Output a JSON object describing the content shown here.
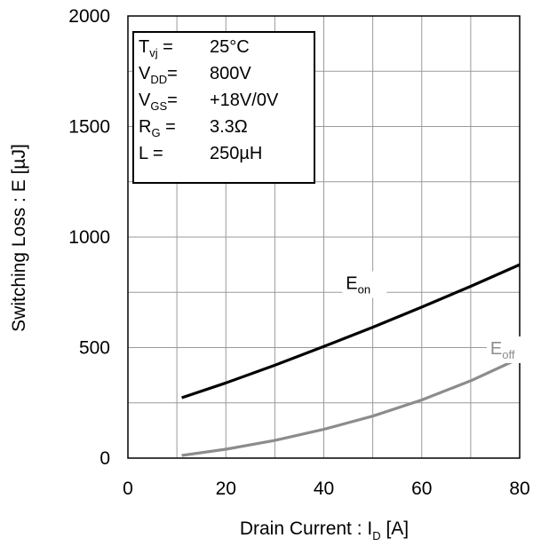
{
  "chart_data": {
    "type": "line",
    "xlabel": {
      "main": "Drain Current : I",
      "sub": "D",
      "tail": " [A]"
    },
    "ylabel": "Switching Loss : E [µJ]",
    "xlim": [
      0,
      80
    ],
    "ylim": [
      0,
      2000
    ],
    "xticks": [
      0,
      20,
      40,
      60,
      80
    ],
    "yticks": [
      0,
      500,
      1000,
      1500,
      2000
    ],
    "x_minor_step": 10,
    "y_minor_step": 250,
    "grid": true,
    "conditions": [
      {
        "sym": "T",
        "sub": "vj",
        "eq": " =",
        "value": "25°C"
      },
      {
        "sym": "V",
        "sub": "DD",
        "eq": "=",
        "value": "800V"
      },
      {
        "sym": "V",
        "sub": "GS",
        "eq": "=",
        "value": "+18V/0V"
      },
      {
        "sym": "R",
        "sub": "G",
        "eq": " =",
        "value": "3.3Ω"
      },
      {
        "sym": "L",
        "sub": "",
        "eq": " =",
        "value": "250µH"
      }
    ],
    "series": [
      {
        "name": "E",
        "name_sub": "on",
        "color": "#000000",
        "label_at": [
          44.5,
          765
        ],
        "x": [
          11,
          20,
          30,
          40,
          50,
          60,
          70,
          80
        ],
        "y": [
          273,
          340,
          420,
          505,
          592,
          683,
          777,
          875
        ]
      },
      {
        "name": "E",
        "name_sub": "off",
        "color": "#8c8c8c",
        "label_at": [
          74,
          470
        ],
        "x": [
          11,
          20,
          30,
          40,
          50,
          60,
          70,
          80
        ],
        "y": [
          12,
          40,
          80,
          130,
          190,
          263,
          350,
          452
        ]
      }
    ]
  }
}
